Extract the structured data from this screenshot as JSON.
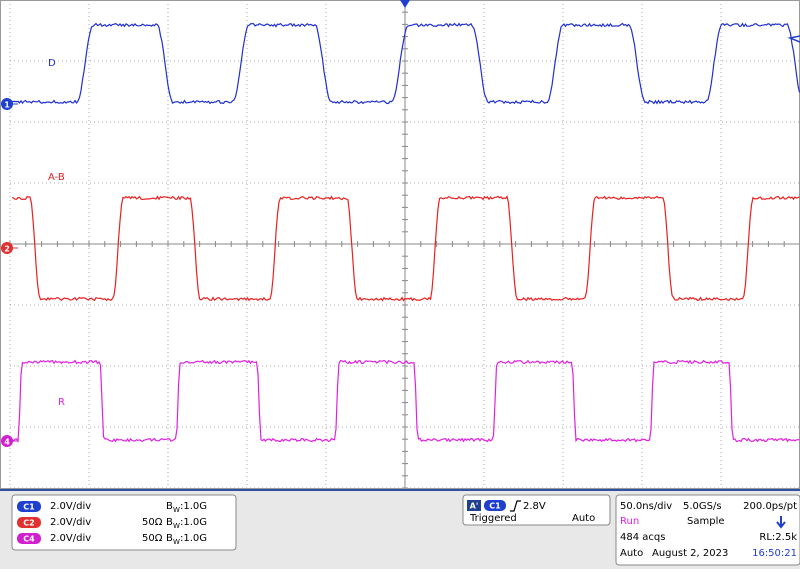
{
  "screen": {
    "trace_labels": [
      "D",
      "A-B",
      "R"
    ],
    "channel_markers": [
      "1",
      "2",
      "4"
    ]
  },
  "channels": [
    {
      "badge": "C1",
      "scale": "2.0V/div",
      "bw_symbol": "B",
      "bw_sub": "W",
      "bw_value": ":1.0G"
    },
    {
      "badge": "C2",
      "scale": "2.0V/div",
      "termination": "50Ω",
      "bw_symbol": "B",
      "bw_sub": "W",
      "bw_value": ":1.0G"
    },
    {
      "badge": "C4",
      "scale": "2.0V/div",
      "termination": "50Ω",
      "bw_symbol": "B",
      "bw_sub": "W",
      "bw_value": ":1.0G"
    }
  ],
  "trigger": {
    "source_badge": "A'",
    "channel": "C1",
    "level": "2.8V",
    "state": "Triggered",
    "mode": "Auto"
  },
  "acquisition": {
    "timebase": "50.0ns/div",
    "sample_rate": "5.0GS/s",
    "resolution": "200.0ps/pt",
    "status": "Run",
    "mode": "Sample",
    "acqs": "484 acqs",
    "record_length": "RL:2.5k",
    "trigger_mode": "Auto",
    "date": "August 2, 2023",
    "time": "16:50:21"
  }
}
